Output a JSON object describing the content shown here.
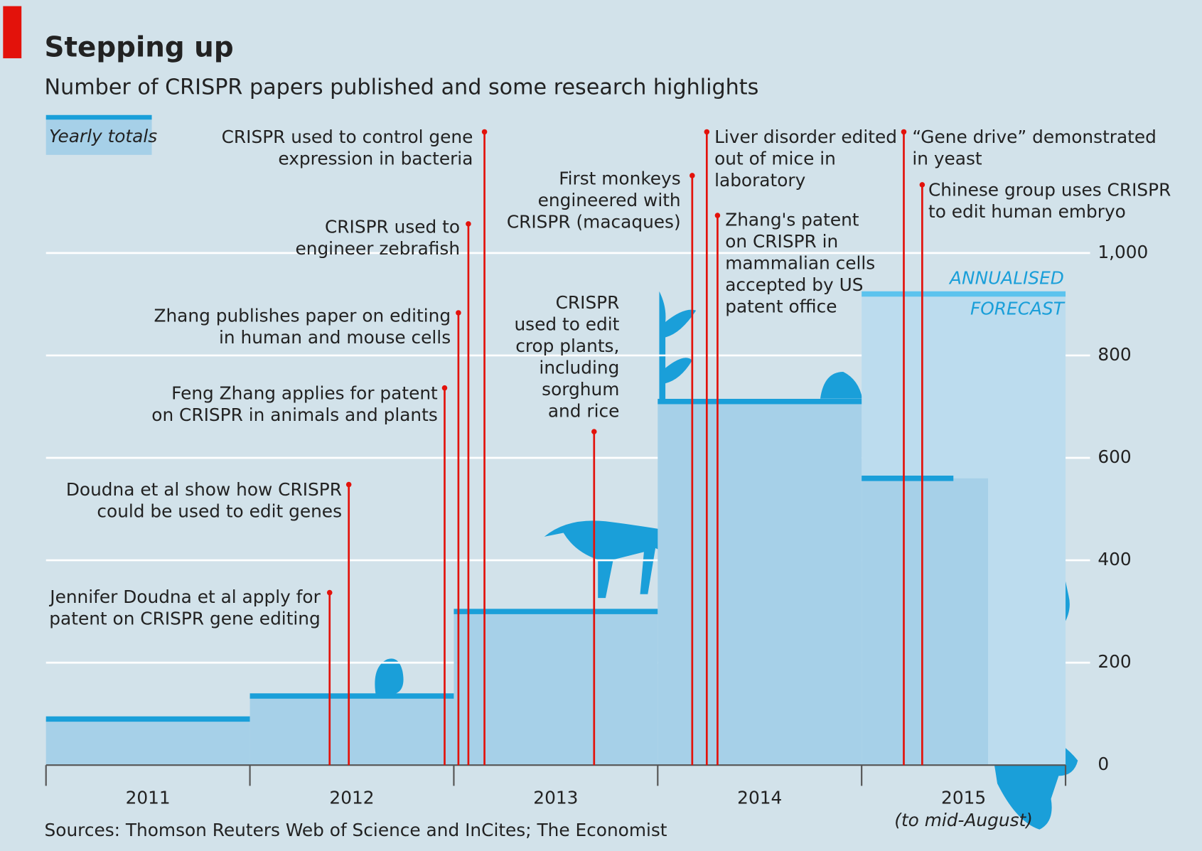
{
  "chart_data": {
    "type": "step",
    "title": "Stepping up",
    "subtitle": "Number of CRISPR papers published and some research highlights",
    "categories": [
      "2011",
      "2012",
      "2013",
      "2014",
      "2015"
    ],
    "category_note": "(to mid-August)",
    "series": [
      {
        "name": "Yearly totals",
        "color": "#1a9fd9",
        "fill": "#a6d0e8",
        "values": [
          90,
          135,
          300,
          710,
          560
        ]
      }
    ],
    "forecast": {
      "label_lines": [
        "ANNUALISED",
        "FORECAST"
      ],
      "value": 920,
      "color": "#5cc3ee",
      "fill": "#bcdcee"
    },
    "ylim": [
      0,
      1000
    ],
    "yticks": [
      0,
      200,
      400,
      600,
      800,
      {
        "value": 1000,
        "label": "1,000"
      }
    ],
    "grid": true,
    "annotations": [
      {
        "lines": [
          "Jennifer Doudna et al apply for",
          "patent on CRISPR gene editing"
        ]
      },
      {
        "lines": [
          "Doudna et al show how CRISPR",
          "could be used to edit genes"
        ]
      },
      {
        "lines": [
          "Feng Zhang applies for patent",
          "on CRISPR in animals and plants"
        ]
      },
      {
        "lines": [
          "Zhang publishes paper on editing",
          "in human and mouse cells"
        ]
      },
      {
        "lines": [
          "CRISPR used to",
          "engineer zebrafish"
        ]
      },
      {
        "lines": [
          "CRISPR used to control gene",
          "expression in bacteria"
        ]
      },
      {
        "lines": [
          "CRISPR",
          "used to edit",
          "crop plants,",
          "including",
          "sorghum",
          "and rice"
        ]
      },
      {
        "lines": [
          "First monkeys",
          "engineered with",
          "CRISPR (macaques)"
        ]
      },
      {
        "lines": [
          "Liver disorder edited",
          "out of mice in",
          "laboratory"
        ]
      },
      {
        "lines": [
          "Zhang's patent",
          "on CRISPR in",
          "mammalian cells",
          "accepted by US",
          "patent office"
        ]
      },
      {
        "lines": [
          "“Gene drive” demonstrated",
          "in yeast"
        ]
      },
      {
        "lines": [
          "Chinese group uses CRISPR",
          "to edit human embryo"
        ]
      }
    ],
    "source": "Sources: Thomson Reuters Web of Science and InCites; The Economist"
  }
}
